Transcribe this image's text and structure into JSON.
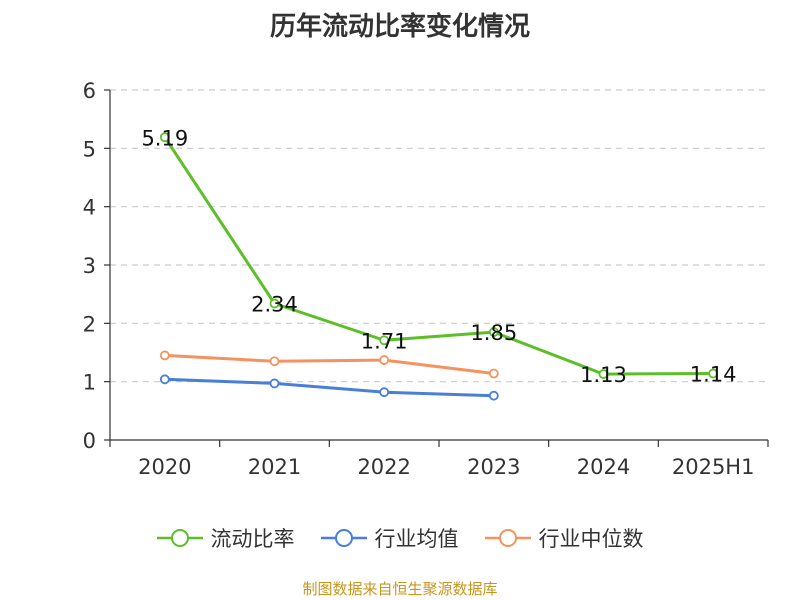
{
  "chart_data": {
    "type": "line",
    "title": "历年流动比率变化情况",
    "categories": [
      "2020",
      "2021",
      "2022",
      "2023",
      "2024",
      "2025H1"
    ],
    "ylim": [
      0,
      6
    ],
    "yticks": [
      "0",
      "1",
      "2",
      "3",
      "4",
      "5",
      "6"
    ],
    "grid": true,
    "legend_position": "bottom",
    "series": [
      {
        "name": "流动比率",
        "color": "#5cbf2a",
        "values": [
          5.19,
          2.34,
          1.71,
          1.85,
          1.13,
          1.14
        ],
        "labels": [
          "5.19",
          "2.34",
          "1.71",
          "1.85",
          "1.13",
          "1.14"
        ]
      },
      {
        "name": "行业均值",
        "color": "#4a7fd8",
        "values": [
          1.04,
          0.97,
          0.82,
          0.76,
          null,
          null
        ]
      },
      {
        "name": "行业中位数",
        "color": "#f59260",
        "values": [
          1.45,
          1.35,
          1.37,
          1.14,
          null,
          null
        ]
      }
    ]
  },
  "footer": {
    "source": "制图数据来自恒生聚源数据库"
  }
}
